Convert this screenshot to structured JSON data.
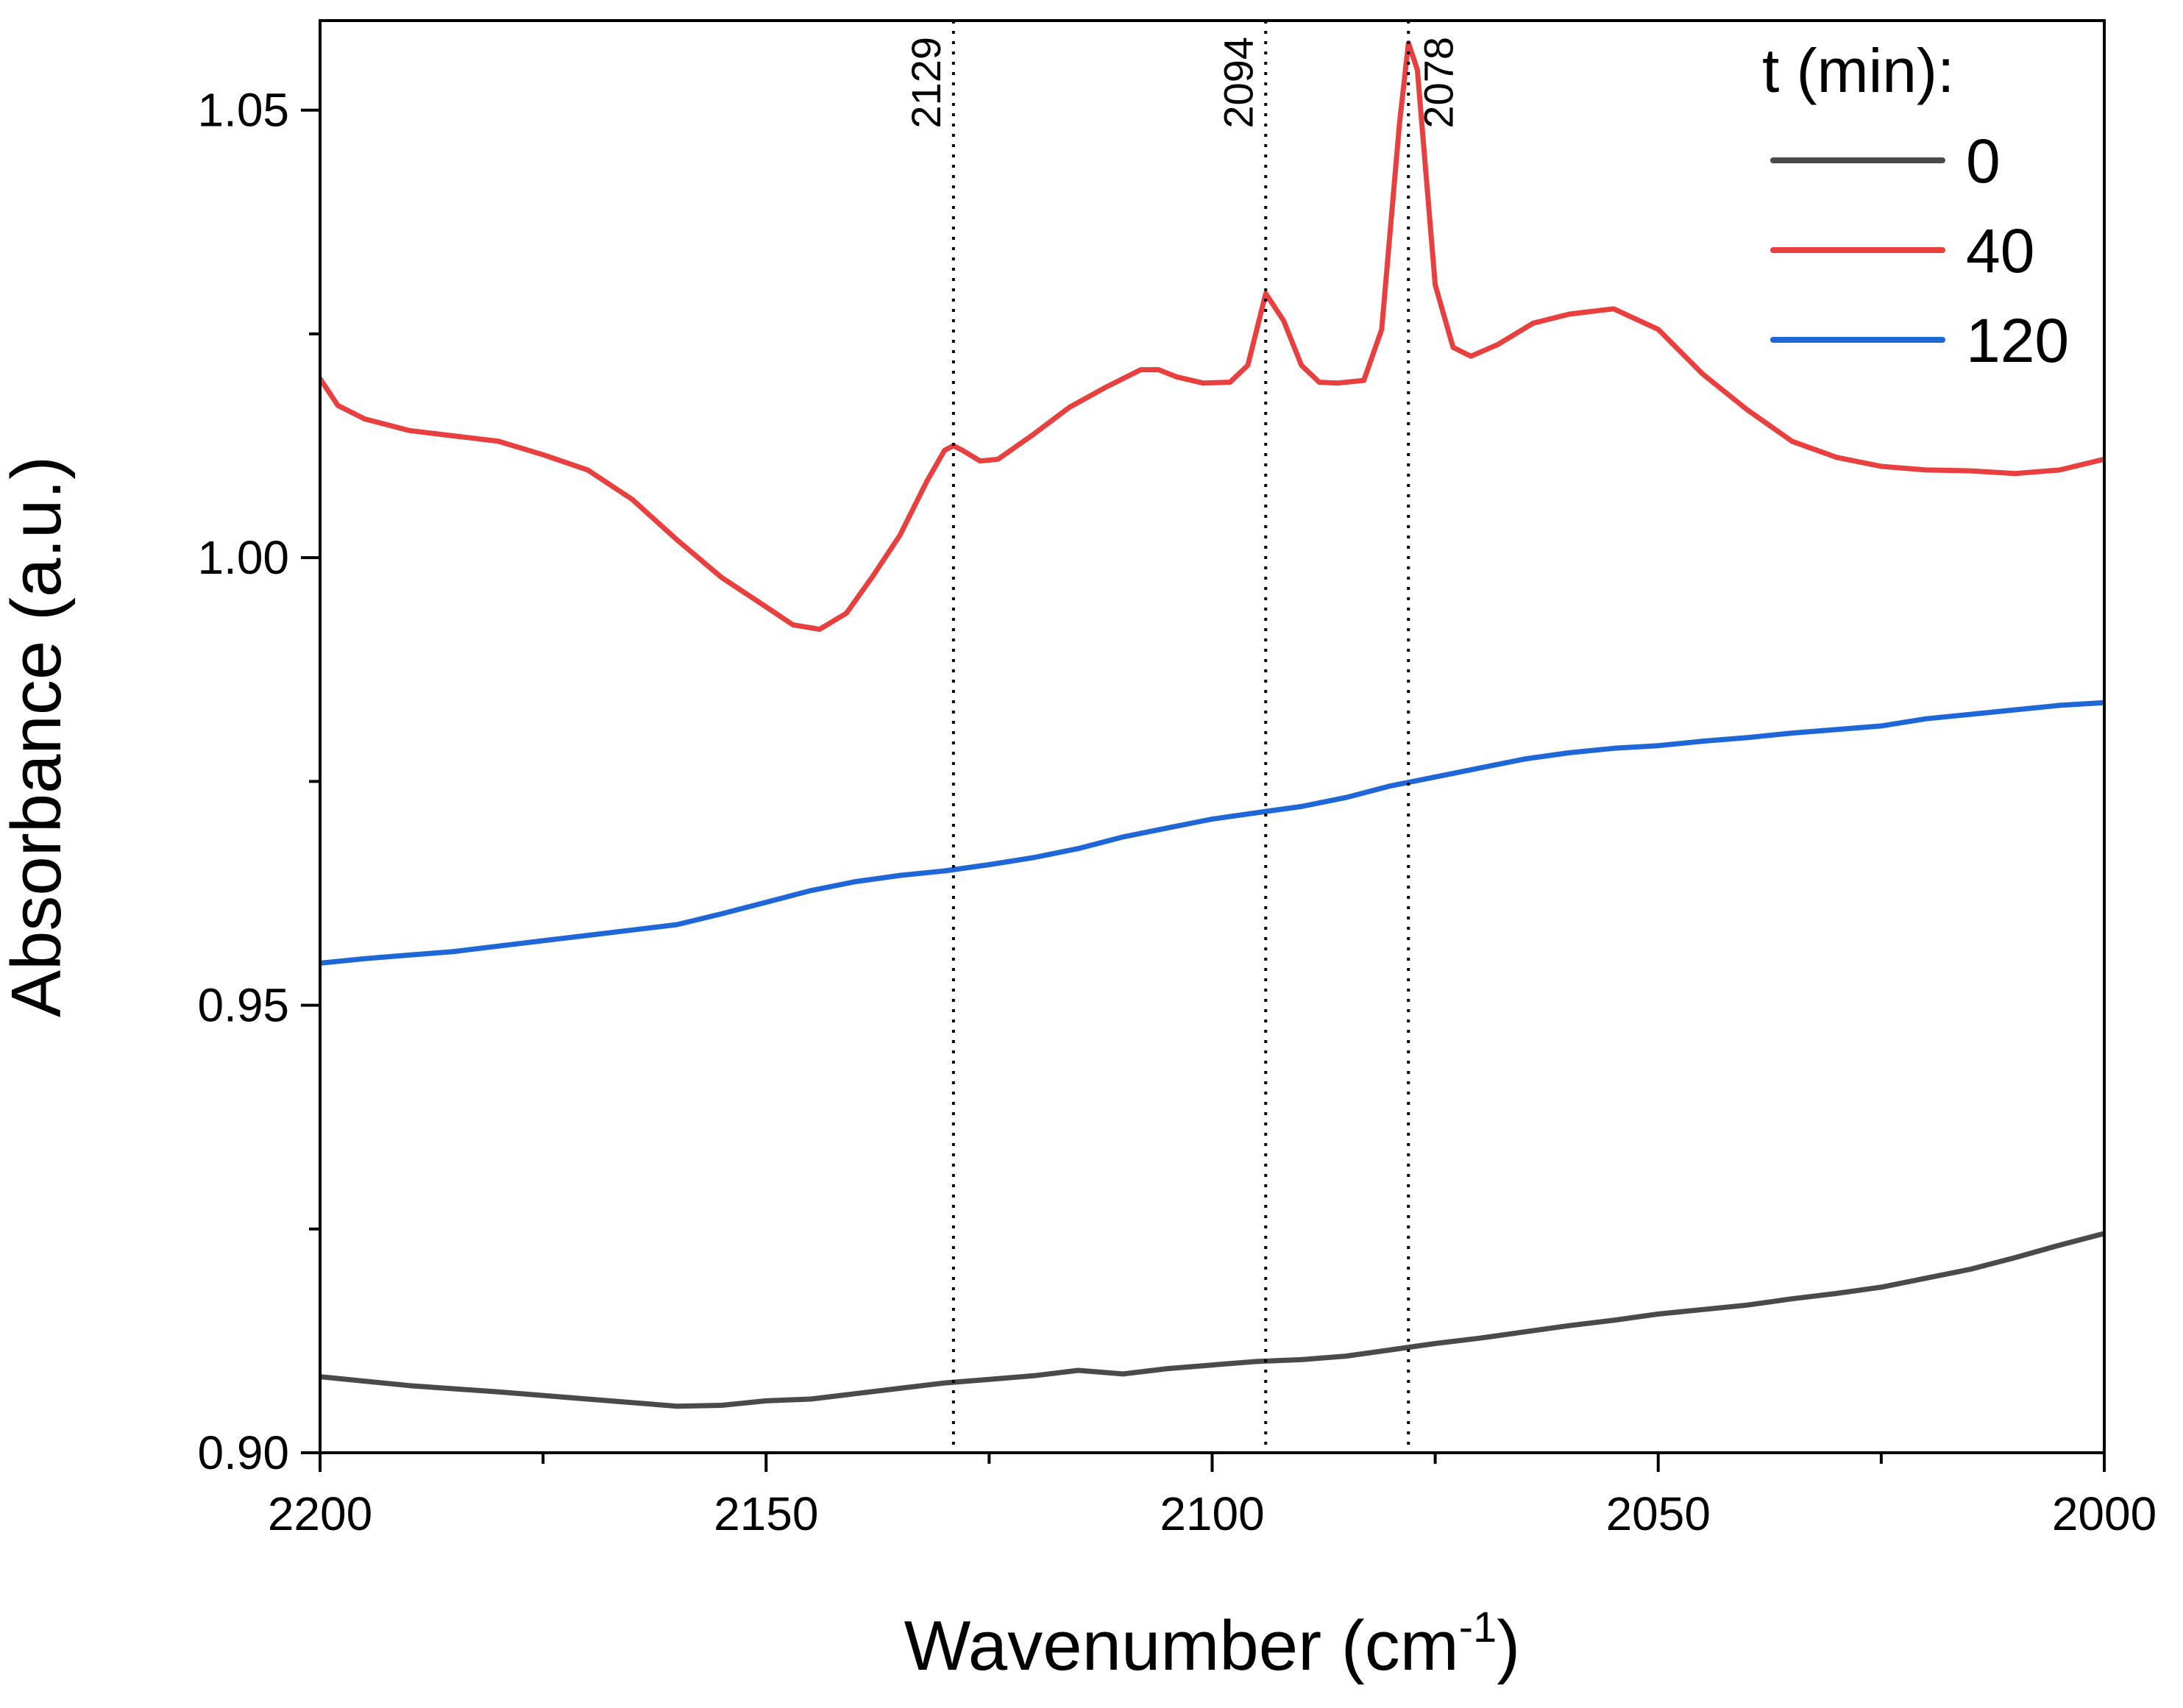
{
  "chart_data": {
    "type": "line",
    "title": "",
    "xlabel": "Wavenumber (cm",
    "xlabel_sup": "-1",
    "xlabel_close": ")",
    "ylabel": "Absorbance (a.u.)",
    "xlim": [
      2200,
      2000
    ],
    "ylim": [
      0.9,
      1.06
    ],
    "x_ticks": [
      2200,
      2150,
      2100,
      2050,
      2000
    ],
    "x_tick_labels": [
      "2200",
      "2150",
      "2100",
      "2050",
      "2000"
    ],
    "x_minor_ticks": [
      2175,
      2125,
      2075,
      2025
    ],
    "y_ticks": [
      0.9,
      0.95,
      1.0,
      1.05
    ],
    "y_tick_labels": [
      "0.90",
      "0.95",
      "1.00",
      "1.05"
    ],
    "y_minor_ticks": [
      0.925,
      0.975,
      1.025
    ],
    "grid": false,
    "legend": {
      "title": "t (min):",
      "placement": "top-right"
    },
    "peak_markers": [
      {
        "x": 2129,
        "label": "2129"
      },
      {
        "x": 2094,
        "label": "2094"
      },
      {
        "x": 2078,
        "label": "2078"
      }
    ],
    "series": [
      {
        "name": "0",
        "color": "#4a4a4a",
        "x": [
          2200,
          2190,
          2180,
          2170,
          2160,
          2155,
          2150,
          2145,
          2140,
          2135,
          2130,
          2125,
          2120,
          2115,
          2110,
          2105,
          2100,
          2095,
          2090,
          2085,
          2080,
          2075,
          2070,
          2065,
          2060,
          2055,
          2050,
          2045,
          2040,
          2035,
          2030,
          2025,
          2020,
          2015,
          2010,
          2005,
          2000
        ],
        "y": [
          0.9085,
          0.9075,
          0.9068,
          0.906,
          0.9052,
          0.9053,
          0.9058,
          0.906,
          0.9066,
          0.9072,
          0.9078,
          0.9082,
          0.9086,
          0.9092,
          0.9088,
          0.9094,
          0.9098,
          0.9102,
          0.9104,
          0.9108,
          0.9115,
          0.9122,
          0.9128,
          0.9135,
          0.9142,
          0.9148,
          0.9155,
          0.916,
          0.9165,
          0.9172,
          0.9178,
          0.9185,
          0.9195,
          0.9205,
          0.9218,
          0.9232,
          0.9245
        ]
      },
      {
        "name": "40",
        "color": "#e8403f",
        "x": [
          2200,
          2198,
          2195,
          2190,
          2185,
          2180,
          2175,
          2170,
          2165,
          2160,
          2155,
          2150,
          2147,
          2144,
          2141,
          2138,
          2135,
          2132,
          2130,
          2129,
          2128,
          2126,
          2124,
          2120,
          2116,
          2112,
          2108,
          2106,
          2104,
          2101,
          2098,
          2096,
          2094,
          2092,
          2090,
          2088,
          2086,
          2083,
          2081,
          2079,
          2078,
          2077,
          2075,
          2073,
          2071,
          2068,
          2064,
          2060,
          2055,
          2050,
          2045,
          2040,
          2035,
          2030,
          2025,
          2020,
          2015,
          2010,
          2005,
          2000
        ],
        "y": [
          1.02,
          1.017,
          1.0155,
          1.0142,
          1.0136,
          1.013,
          1.0115,
          1.0098,
          1.0065,
          1.002,
          0.9978,
          0.9945,
          0.9925,
          0.992,
          0.9938,
          0.998,
          1.0025,
          1.0085,
          1.012,
          1.0125,
          1.012,
          1.0108,
          1.011,
          1.0138,
          1.0168,
          1.019,
          1.021,
          1.021,
          1.0202,
          1.0195,
          1.0196,
          1.0215,
          1.0295,
          1.0265,
          1.0215,
          1.0196,
          1.0195,
          1.0198,
          1.0255,
          1.0485,
          1.0575,
          1.0545,
          1.0305,
          1.0235,
          1.0225,
          1.0238,
          1.0262,
          1.0272,
          1.0278,
          1.0255,
          1.0205,
          1.0165,
          1.013,
          1.0112,
          1.0102,
          1.0098,
          1.0097,
          1.0094,
          1.0098,
          1.011
        ]
      },
      {
        "name": "120",
        "color": "#1f66d6",
        "x": [
          2200,
          2195,
          2190,
          2185,
          2180,
          2175,
          2170,
          2165,
          2160,
          2155,
          2150,
          2145,
          2140,
          2135,
          2130,
          2125,
          2120,
          2115,
          2110,
          2105,
          2100,
          2095,
          2090,
          2085,
          2080,
          2075,
          2070,
          2065,
          2060,
          2055,
          2050,
          2045,
          2040,
          2035,
          2030,
          2025,
          2020,
          2015,
          2010,
          2005,
          2000
        ],
        "y": [
          0.9547,
          0.9552,
          0.9556,
          0.956,
          0.9566,
          0.9572,
          0.9578,
          0.9584,
          0.959,
          0.9602,
          0.9615,
          0.9628,
          0.9638,
          0.9645,
          0.965,
          0.9657,
          0.9665,
          0.9675,
          0.9688,
          0.9698,
          0.9708,
          0.9715,
          0.9722,
          0.9732,
          0.9745,
          0.9755,
          0.9765,
          0.9775,
          0.9782,
          0.9787,
          0.979,
          0.9795,
          0.9799,
          0.9804,
          0.9808,
          0.9812,
          0.982,
          0.9825,
          0.983,
          0.9835,
          0.9838
        ]
      }
    ]
  }
}
